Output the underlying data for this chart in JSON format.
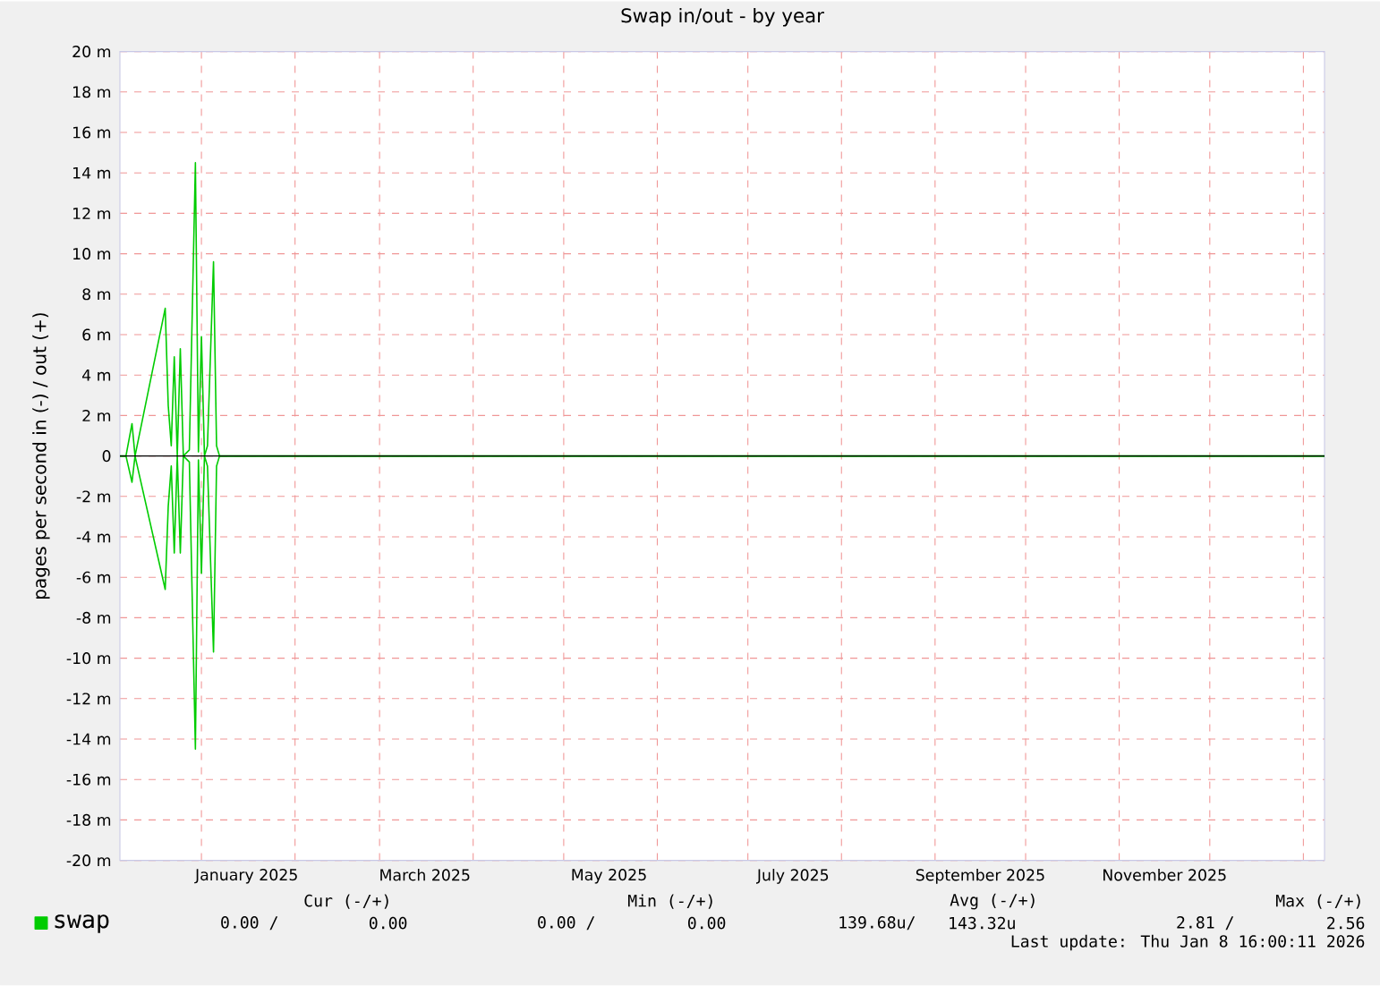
{
  "chart_data": {
    "type": "line",
    "title": "Swap in/out - by year",
    "ylabel": "pages per second in (-) / out (+)",
    "x": [
      "2024-12-05",
      "2024-12-07",
      "2024-12-09",
      "2024-12-10",
      "2024-12-20",
      "2024-12-21",
      "2024-12-22",
      "2024-12-23",
      "2024-12-24",
      "2024-12-25",
      "2024-12-26",
      "2024-12-28",
      "2024-12-30",
      "2024-12-31",
      "2025-01-01",
      "2025-01-02",
      "2025-01-03",
      "2025-01-05",
      "2025-01-06",
      "2025-01-07",
      "2026-01-08"
    ],
    "series": [
      {
        "name": "swap",
        "color": "#00cc00",
        "values": [
          0,
          0,
          1.6,
          0,
          7.3,
          2.5,
          0.5,
          4.9,
          0,
          5.3,
          0,
          0.3,
          14.5,
          0.2,
          5.9,
          0,
          0.5,
          9.6,
          0.5,
          0,
          0
        ]
      },
      {
        "color": "#00cc00",
        "values": [
          0,
          0,
          -1.3,
          0,
          -6.6,
          -2.5,
          -0.5,
          -4.8,
          0,
          -4.8,
          0,
          -0.3,
          -14.5,
          -0.2,
          -5.8,
          0,
          -0.5,
          -9.7,
          -0.5,
          0,
          0
        ]
      }
    ],
    "xlim": [
      "2024-12-05",
      "2026-01-08"
    ],
    "xticks": [
      {
        "value": "2025-01-01",
        "label": null
      },
      {
        "value": "2025-02-01",
        "label": null
      },
      {
        "value": "2025-03-01",
        "label": null
      },
      {
        "value": "2025-04-01",
        "label": null
      },
      {
        "value": "2025-05-01",
        "label": null
      },
      {
        "value": "2025-06-01",
        "label": null
      },
      {
        "value": "2025-07-01",
        "label": null
      },
      {
        "value": "2025-08-01",
        "label": null
      },
      {
        "value": "2025-09-01",
        "label": null
      },
      {
        "value": "2025-10-01",
        "label": null
      },
      {
        "value": "2025-11-01",
        "label": null
      },
      {
        "value": "2025-12-01",
        "label": null
      },
      {
        "value": "2026-01-01",
        "label": null
      },
      {
        "value": "2025-01-16",
        "label": "January 2025"
      },
      {
        "value": "2025-03-16",
        "label": "March 2025"
      },
      {
        "value": "2025-05-16",
        "label": "May 2025"
      },
      {
        "value": "2025-07-16",
        "label": "July 2025"
      },
      {
        "value": "2025-09-16",
        "label": "September 2025"
      },
      {
        "value": "2025-11-16",
        "label": "November 2025"
      }
    ],
    "ylim": [
      -20,
      20
    ],
    "yticks": [
      {
        "value": -20,
        "label": "-20 m"
      },
      {
        "value": -18,
        "label": "-18 m"
      },
      {
        "value": -16,
        "label": "-16 m"
      },
      {
        "value": -14,
        "label": "-14 m"
      },
      {
        "value": -12,
        "label": "-12 m"
      },
      {
        "value": -10,
        "label": "-10 m"
      },
      {
        "value": -8,
        "label": "-8 m"
      },
      {
        "value": -6,
        "label": "-6 m"
      },
      {
        "value": -4,
        "label": "-4 m"
      },
      {
        "value": -2,
        "label": "-2 m"
      },
      0,
      {
        "value": 2,
        "label": "2 m"
      },
      {
        "value": 4,
        "label": "4 m"
      },
      {
        "value": 6,
        "label": "6 m"
      },
      {
        "value": 8,
        "label": "8 m"
      },
      {
        "value": 10,
        "label": "10 m"
      },
      {
        "value": 12,
        "label": "12 m"
      },
      {
        "value": 14,
        "label": "14 m"
      },
      {
        "value": 16,
        "label": "16 m"
      },
      {
        "value": 18,
        "label": "18 m"
      },
      {
        "value": 20,
        "label": "20 m"
      }
    ],
    "ref_lines": [
      {
        "axis": "y",
        "value": 0,
        "color": "#000000"
      }
    ],
    "grid": true,
    "legend": "bottom left",
    "line_style": "solid",
    "marker": "none",
    "annotations": [
      "Cur (-/+)",
      "Min (-/+)",
      "Avg (-/+)",
      "Max (-/+)",
      "0.00 /",
      "0.00",
      "0.00 /",
      "0.00",
      "139.68u/",
      "143.32u",
      "2.81 /",
      "2.56",
      "Last update: Thu Jan  8 16:00:11 2026"
    ]
  }
}
